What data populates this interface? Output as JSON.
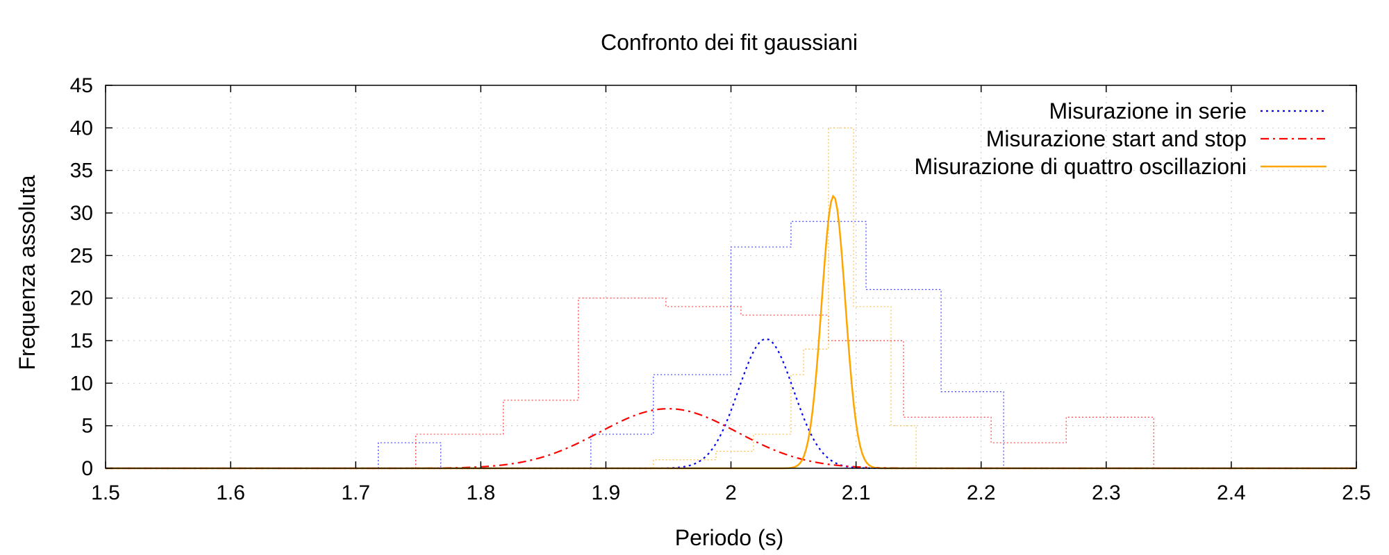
{
  "chart_data": {
    "type": "line",
    "title": "Confronto dei fit gaussiani",
    "xlabel": "Periodo (s)",
    "ylabel": "Frequenza assoluta",
    "xlim": [
      1.5,
      2.5
    ],
    "ylim": [
      0,
      45
    ],
    "x_ticks": [
      "1.5",
      "1.6",
      "1.7",
      "1.8",
      "1.9",
      "2",
      "2.1",
      "2.2",
      "2.3",
      "2.4",
      "2.5"
    ],
    "y_ticks": [
      "0",
      "5",
      "10",
      "15",
      "20",
      "25",
      "30",
      "35",
      "40",
      "45"
    ],
    "grid": true,
    "legend_position": "top-right",
    "series": [
      {
        "name": "Misurazione in serie",
        "color": "#0000ff",
        "line_style": "dotted",
        "gaussian_curve": {
          "mean": 2.028,
          "sigma": 0.022,
          "peak": 15.2
        },
        "histogram": [
          {
            "x0": 1.718,
            "x1": 1.768,
            "count": 3
          },
          {
            "x0": 1.768,
            "x1": 1.888,
            "count": 0
          },
          {
            "x0": 1.888,
            "x1": 1.938,
            "count": 4
          },
          {
            "x0": 1.938,
            "x1": 2.0,
            "count": 11
          },
          {
            "x0": 2.0,
            "x1": 2.048,
            "count": 26
          },
          {
            "x0": 2.048,
            "x1": 2.108,
            "count": 29
          },
          {
            "x0": 2.108,
            "x1": 2.168,
            "count": 21
          },
          {
            "x0": 2.168,
            "x1": 2.218,
            "count": 9
          }
        ]
      },
      {
        "name": "Misurazione start and stop",
        "color": "#ff0000",
        "line_style": "dash-dot",
        "gaussian_curve": {
          "mean": 1.95,
          "sigma": 0.055,
          "peak": 7.0
        },
        "histogram": [
          {
            "x0": 1.748,
            "x1": 1.818,
            "count": 4
          },
          {
            "x0": 1.818,
            "x1": 1.878,
            "count": 8
          },
          {
            "x0": 1.878,
            "x1": 1.948,
            "count": 20
          },
          {
            "x0": 1.948,
            "x1": 2.008,
            "count": 19
          },
          {
            "x0": 2.008,
            "x1": 2.078,
            "count": 18
          },
          {
            "x0": 2.078,
            "x1": 2.138,
            "count": 15
          },
          {
            "x0": 2.138,
            "x1": 2.208,
            "count": 6
          },
          {
            "x0": 2.208,
            "x1": 2.268,
            "count": 3
          },
          {
            "x0": 2.268,
            "x1": 2.338,
            "count": 6
          }
        ]
      },
      {
        "name": "Misurazione di quattro oscillazioni",
        "color": "#ffa500",
        "line_style": "solid",
        "gaussian_curve": {
          "mean": 2.082,
          "sigma": 0.0095,
          "peak": 32.0
        },
        "histogram": [
          {
            "x0": 1.938,
            "x1": 1.988,
            "count": 1
          },
          {
            "x0": 1.988,
            "x1": 2.018,
            "count": 2
          },
          {
            "x0": 2.018,
            "x1": 2.048,
            "count": 4
          },
          {
            "x0": 2.048,
            "x1": 2.058,
            "count": 11
          },
          {
            "x0": 2.058,
            "x1": 2.078,
            "count": 14
          },
          {
            "x0": 2.078,
            "x1": 2.098,
            "count": 40
          },
          {
            "x0": 2.098,
            "x1": 2.128,
            "count": 19
          },
          {
            "x0": 2.128,
            "x1": 2.148,
            "count": 5
          }
        ]
      }
    ]
  }
}
